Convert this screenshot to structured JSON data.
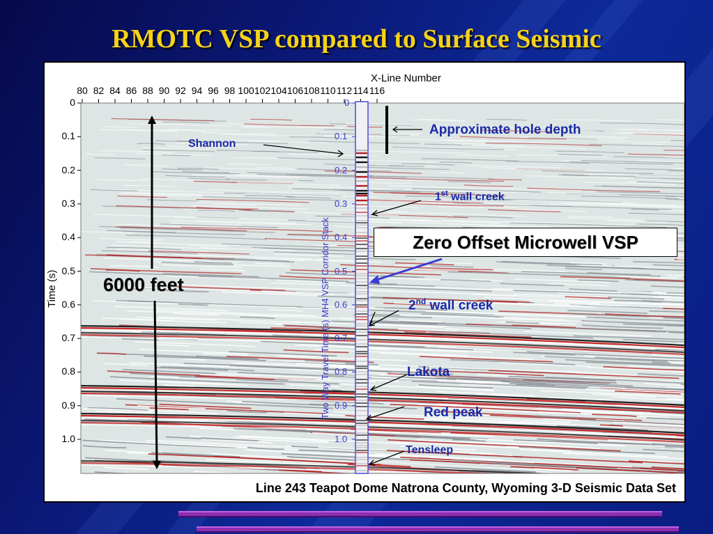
{
  "slide": {
    "title": "RMOTC VSP compared to Surface Seismic"
  },
  "figure": {
    "x_axis_label": "X-Line Number",
    "x_ticks": [
      "80",
      "82",
      "84",
      "86",
      "88",
      "90",
      "92",
      "94",
      "96",
      "98",
      "100",
      "102",
      "104",
      "106",
      "108",
      "110",
      "112",
      "114",
      "116"
    ],
    "y_axis_label": "Time (s)",
    "y_ticks": [
      "0",
      "0.1",
      "0.2",
      "0.3",
      "0.4",
      "0.5",
      "0.6",
      "0.7",
      "0.8",
      "0.9",
      "1.0"
    ],
    "vsp_axis_label": "Two Way Travel Time (s)  MH4 VSP Corridor Stack",
    "vsp_ticks": [
      "0",
      "0.1",
      "0.2",
      "0.3",
      "0.4",
      "0.5",
      "0.6",
      "0.7",
      "0.8",
      "0.9",
      "1.0"
    ],
    "caption": "Line 243 Teapot Dome Natrona County, Wyoming 3-D Seismic Data Set"
  },
  "annotations": {
    "approx_hole_depth": "Approximate  hole  depth",
    "shannon": "Shannon",
    "first_wall_creek_num": "1",
    "first_wall_creek_sup": "st",
    "first_wall_creek_text": " wall creek",
    "zero_offset": "Zero Offset Microwell VSP",
    "six_thousand_feet": "6000 feet",
    "second_wall_creek_num": "2",
    "second_wall_creek_sup": "nd",
    "second_wall_creek_text": "  wall creek",
    "lakota": "Lakota",
    "red_peak": "Red peak",
    "tensleep": "Tensleep"
  },
  "colors": {
    "title": "#f5d21a",
    "annotation": "#1a2aa8",
    "vsp_axis": "#3a3ad0",
    "seismic_red": "#d02020"
  }
}
